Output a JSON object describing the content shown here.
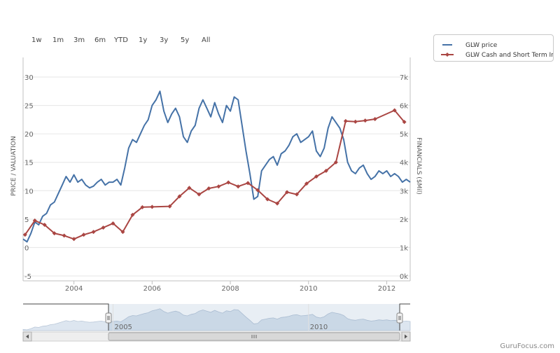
{
  "range_selector": {
    "buttons": [
      "1w",
      "1m",
      "3m",
      "6m",
      "YTD",
      "1y",
      "3y",
      "5y",
      "All"
    ]
  },
  "legend": {
    "items": [
      {
        "label": "GLW price",
        "color": "#4572a7"
      },
      {
        "label": "GLW Cash and Short Term Inv",
        "color": "#aa4643"
      }
    ]
  },
  "navigator": {
    "labels": [
      "2005",
      "2010"
    ]
  },
  "brand": "GuruFocus.com",
  "chart_data": {
    "type": "line",
    "title": "",
    "xlabel": "",
    "ylabel_left": "PRICE / VALUATION",
    "ylabel_right": "FINANCIALS ($Mil)",
    "x_ticks": [
      "2004",
      "2006",
      "2008",
      "2010",
      "2012"
    ],
    "xlim": [
      2002.7,
      2012.6
    ],
    "y_left_ticks": [
      "-5",
      "0",
      "5",
      "10",
      "15",
      "20",
      "25",
      "30"
    ],
    "y_left_lim": [
      -5,
      30
    ],
    "y_right_ticks": [
      "0k",
      "1k",
      "2k",
      "3k",
      "4k",
      "5k",
      "6k",
      "7k"
    ],
    "y_right_lim": [
      0,
      7000
    ],
    "grid": true,
    "legend_position": "top-right",
    "series": [
      {
        "name": "GLW price",
        "axis": "left",
        "color": "#4572a7",
        "x": [
          2002.7,
          2002.8,
          2002.9,
          2003.0,
          2003.1,
          2003.2,
          2003.3,
          2003.4,
          2003.5,
          2003.6,
          2003.7,
          2003.8,
          2003.9,
          2004.0,
          2004.1,
          2004.2,
          2004.3,
          2004.4,
          2004.5,
          2004.6,
          2004.7,
          2004.8,
          2004.9,
          2005.0,
          2005.1,
          2005.2,
          2005.3,
          2005.4,
          2005.5,
          2005.6,
          2005.7,
          2005.8,
          2005.9,
          2006.0,
          2006.1,
          2006.2,
          2006.3,
          2006.4,
          2006.5,
          2006.6,
          2006.7,
          2006.8,
          2006.9,
          2007.0,
          2007.1,
          2007.2,
          2007.3,
          2007.4,
          2007.5,
          2007.6,
          2007.7,
          2007.8,
          2007.9,
          2008.0,
          2008.1,
          2008.2,
          2008.3,
          2008.4,
          2008.5,
          2008.6,
          2008.7,
          2008.8,
          2008.9,
          2009.0,
          2009.1,
          2009.2,
          2009.3,
          2009.4,
          2009.5,
          2009.6,
          2009.7,
          2009.8,
          2009.9,
          2010.0,
          2010.1,
          2010.2,
          2010.3,
          2010.4,
          2010.5,
          2010.6,
          2010.7,
          2010.8,
          2010.9,
          2011.0,
          2011.1,
          2011.2,
          2011.3,
          2011.4,
          2011.5,
          2011.6,
          2011.7,
          2011.8,
          2011.9,
          2012.0,
          2012.1,
          2012.2,
          2012.3,
          2012.4,
          2012.5,
          2012.6
        ],
        "values": [
          1.5,
          1.0,
          2.5,
          4.5,
          4.0,
          5.5,
          6.0,
          7.5,
          8.0,
          9.5,
          11.0,
          12.5,
          11.5,
          12.8,
          11.5,
          12.0,
          11.0,
          10.5,
          10.8,
          11.5,
          12.0,
          11.0,
          11.5,
          11.5,
          12.0,
          11.0,
          14.0,
          17.5,
          19.0,
          18.5,
          20.0,
          21.5,
          22.5,
          25.0,
          26.0,
          27.5,
          24.0,
          22.0,
          23.5,
          24.5,
          23.0,
          19.5,
          18.5,
          20.5,
          21.5,
          24.5,
          26.0,
          24.5,
          23.0,
          25.5,
          23.5,
          22.0,
          25.0,
          24.0,
          26.5,
          26.0,
          21.5,
          17.0,
          13.0,
          8.5,
          9.0,
          13.5,
          14.5,
          15.5,
          16.0,
          14.5,
          16.5,
          17.0,
          18.0,
          19.5,
          20.0,
          18.5,
          19.0,
          19.5,
          20.5,
          17.0,
          16.0,
          17.5,
          21.0,
          23.0,
          22.0,
          21.0,
          19.0,
          15.0,
          13.5,
          13.0,
          14.0,
          14.5,
          13.0,
          12.0,
          12.5,
          13.5,
          13.0,
          13.5,
          12.5,
          13.0,
          12.5,
          11.5,
          12.0,
          11.5
        ]
      },
      {
        "name": "GLW Cash and Short Term Inv",
        "axis": "right",
        "color": "#aa4643",
        "x": [
          2002.75,
          2003.0,
          2003.25,
          2003.5,
          2003.75,
          2004.0,
          2004.25,
          2004.5,
          2004.75,
          2005.0,
          2005.25,
          2005.5,
          2005.75,
          2006.0,
          2006.45,
          2006.7,
          2006.95,
          2007.2,
          2007.45,
          2007.7,
          2007.95,
          2008.2,
          2008.45,
          2008.7,
          2008.95,
          2009.2,
          2009.45,
          2009.7,
          2009.95,
          2010.2,
          2010.45,
          2010.7,
          2010.95,
          2011.2,
          2011.45,
          2011.7,
          2012.2,
          2012.45
        ],
        "values": [
          1450,
          1950,
          1800,
          1500,
          1420,
          1300,
          1450,
          1550,
          1700,
          1850,
          1550,
          2150,
          2420,
          2430,
          2450,
          2800,
          3100,
          2870,
          3080,
          3150,
          3290,
          3150,
          3270,
          3020,
          2700,
          2550,
          2950,
          2870,
          3250,
          3500,
          3700,
          4000,
          5450,
          5430,
          5470,
          5520,
          5830,
          5420
        ]
      }
    ]
  }
}
